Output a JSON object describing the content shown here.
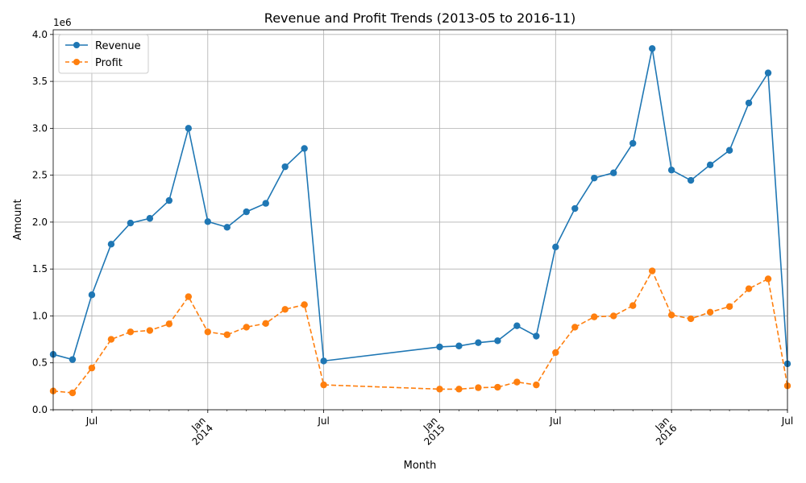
{
  "chart_data": {
    "type": "line",
    "title": "Revenue and Profit Trends (2013-05 to 2016-11)",
    "xlabel": "Month",
    "ylabel": "Amount",
    "y_offset_label": "1e6",
    "ylim": [
      0,
      4050000
    ],
    "y_ticks": [
      0,
      500000,
      1000000,
      1500000,
      2000000,
      2500000,
      3000000,
      3500000,
      4000000
    ],
    "y_tick_labels": [
      "0.0",
      "0.5",
      "1.0",
      "1.5",
      "2.0",
      "2.5",
      "3.0",
      "3.5",
      "4.0"
    ],
    "x_range": [
      "2013-05",
      "2016-07"
    ],
    "x_ticks": [
      {
        "month": "2013-07",
        "label": "Jul",
        "year": ""
      },
      {
        "month": "2014-01",
        "label": "Jan",
        "year": "2014"
      },
      {
        "month": "2014-07",
        "label": "Jul",
        "year": ""
      },
      {
        "month": "2015-01",
        "label": "Jan",
        "year": "2015"
      },
      {
        "month": "2015-07",
        "label": "Jul",
        "year": ""
      },
      {
        "month": "2016-01",
        "label": "Jan",
        "year": "2016"
      },
      {
        "month": "2016-07",
        "label": "Jul",
        "year": ""
      }
    ],
    "grid": true,
    "legend_position": "top-left",
    "x": [
      "2013-05",
      "2013-06",
      "2013-07",
      "2013-08",
      "2013-09",
      "2013-10",
      "2013-11",
      "2013-12",
      "2014-01",
      "2014-02",
      "2014-03",
      "2014-04",
      "2014-05",
      "2014-06",
      "2014-07",
      "2015-01",
      "2015-02",
      "2015-03",
      "2015-04",
      "2015-05",
      "2015-06",
      "2015-07",
      "2015-08",
      "2015-09",
      "2015-10",
      "2015-11",
      "2015-12",
      "2016-01",
      "2016-02",
      "2016-03",
      "2016-04",
      "2016-05",
      "2016-06",
      "2016-07"
    ],
    "series": [
      {
        "name": "Revenue",
        "color": "#1f77b4",
        "style": "solid",
        "values": [
          590000,
          535000,
          1225000,
          1765000,
          1990000,
          2040000,
          2230000,
          3000000,
          2005000,
          1945000,
          2110000,
          2200000,
          2590000,
          2785000,
          520000,
          670000,
          680000,
          715000,
          735000,
          895000,
          785000,
          1735000,
          2145000,
          2470000,
          2525000,
          2840000,
          3850000,
          2555000,
          2445000,
          2610000,
          2765000,
          3270000,
          3590000,
          490000
        ]
      },
      {
        "name": "Profit",
        "color": "#ff7f0e",
        "style": "dashed",
        "values": [
          200000,
          180000,
          445000,
          750000,
          830000,
          845000,
          915000,
          1205000,
          830000,
          800000,
          880000,
          920000,
          1070000,
          1120000,
          265000,
          220000,
          220000,
          235000,
          240000,
          295000,
          265000,
          610000,
          880000,
          990000,
          1000000,
          1110000,
          1480000,
          1010000,
          970000,
          1040000,
          1100000,
          1290000,
          1395000,
          255000
        ]
      }
    ]
  }
}
